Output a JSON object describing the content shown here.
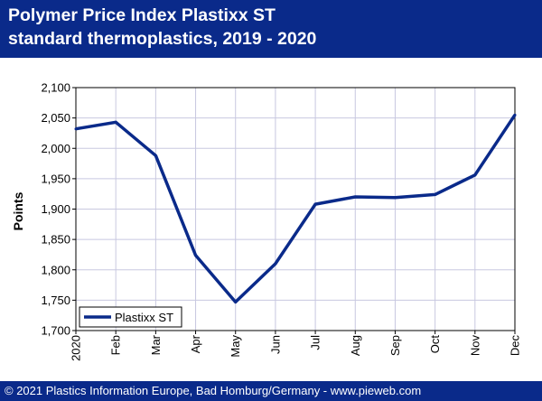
{
  "header": {
    "title_line1": "Polymer Price Index Plastixx ST",
    "title_line2": "standard thermoplastics, 2019 - 2020"
  },
  "footer": {
    "text": "© 2021 Plastics Information Europe, Bad Homburg/Germany - www.pieweb.com"
  },
  "colors": {
    "banner": "#0a2a8a",
    "series": "#0a2a8a",
    "grid": "#c8c8e0",
    "plot_background": "#ffffff"
  },
  "chart_data": {
    "type": "line",
    "title": "Polymer Price Index Plastixx ST standard thermoplastics, 2019 - 2020",
    "xlabel": "",
    "ylabel": "Points",
    "categories": [
      "2020",
      "Feb",
      "Mar",
      "Apr",
      "May",
      "Jun",
      "Jul",
      "Aug",
      "Sep",
      "Oct",
      "Nov",
      "Dec"
    ],
    "y_ticks": [
      "1,700",
      "1,750",
      "1,800",
      "1,850",
      "1,900",
      "1,950",
      "2,000",
      "2,050",
      "2,100"
    ],
    "ylim": [
      1700,
      2100
    ],
    "grid": true,
    "legend_position": "bottom-left",
    "series": [
      {
        "name": "Plastixx ST",
        "values": [
          2032,
          2043,
          1988,
          1824,
          1747,
          1810,
          1908,
          1920,
          1919,
          1924,
          1956,
          2055
        ]
      }
    ]
  }
}
